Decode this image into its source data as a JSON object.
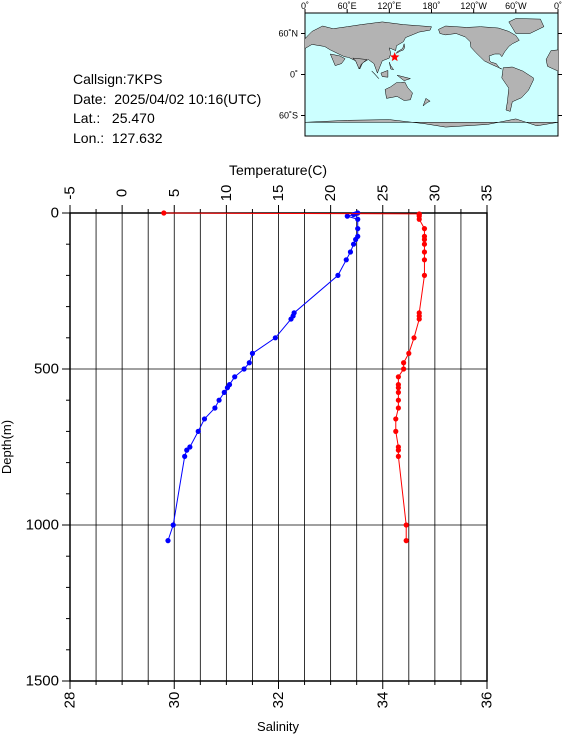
{
  "station": {
    "callsign_line": "Callsign:7KPS",
    "date_line": "Date:  2025/04/02 10:16(UTC)",
    "lat_line": "Lat.:   25.470",
    "lon_line": "Lon.:  127.632"
  },
  "map": {
    "lon_labels": [
      "0˚",
      "60˚E",
      "120˚E",
      "180˚",
      "120˚W",
      "60˚W",
      "0˚"
    ],
    "lat_labels": [
      "60˚N",
      "0˚",
      "60˚S"
    ],
    "ocean_color": "#ccffff",
    "land_color": "#b3b3b3",
    "marker": {
      "icon": "star-icon",
      "lon": 127.632,
      "lat": 25.47,
      "color": "#ff0000"
    }
  },
  "chart_data": {
    "type": "line",
    "top_axis": {
      "label": "Temperature(C)",
      "range": [
        -5,
        35
      ],
      "ticks": [
        "-5",
        "0",
        "5",
        "10",
        "15",
        "20",
        "25",
        "30",
        "35"
      ]
    },
    "bottom_axis": {
      "label": "Salinity",
      "range": [
        28,
        36
      ],
      "ticks": [
        "28",
        "30",
        "32",
        "34",
        "36"
      ]
    },
    "y_axis": {
      "label": "Depth(m)",
      "range": [
        0,
        1500
      ],
      "inverted": true,
      "ticks": [
        "0",
        "500",
        "1000",
        "1500"
      ]
    },
    "grid": true,
    "series": [
      {
        "quantity": "temperature",
        "axis": "top",
        "color": "#0000ff",
        "depth": [
          0,
          3,
          5,
          10,
          20,
          50,
          75,
          85,
          100,
          125,
          150,
          200,
          320,
          330,
          340,
          400,
          450,
          480,
          500,
          525,
          550,
          560,
          575,
          600,
          625,
          660,
          700,
          750,
          760,
          780,
          1000,
          1050
        ],
        "values": [
          22.6,
          22.4,
          22.2,
          21.6,
          22.6,
          22.6,
          22.6,
          22.4,
          22.2,
          21.9,
          21.5,
          20.7,
          16.5,
          16.4,
          16.2,
          14.7,
          12.5,
          12.2,
          11.7,
          10.8,
          10.3,
          10.1,
          9.8,
          9.3,
          8.9,
          7.9,
          7.3,
          6.5,
          6.2,
          6.0,
          4.9,
          4.4
        ]
      },
      {
        "quantity": "salinity",
        "axis": "bottom",
        "color": "#ff0000",
        "depth": [
          0,
          3,
          5,
          10,
          20,
          50,
          75,
          85,
          100,
          125,
          150,
          200,
          320,
          330,
          340,
          400,
          450,
          480,
          500,
          525,
          550,
          560,
          575,
          600,
          625,
          660,
          700,
          750,
          760,
          780,
          1000,
          1050
        ],
        "values": [
          29.8,
          34.7,
          34.7,
          34.7,
          34.7,
          34.8,
          34.8,
          34.8,
          34.8,
          34.8,
          34.8,
          34.8,
          34.7,
          34.7,
          34.7,
          34.6,
          34.5,
          34.4,
          34.4,
          34.3,
          34.3,
          34.3,
          34.3,
          34.3,
          34.3,
          34.25,
          34.25,
          34.3,
          34.3,
          34.3,
          34.45,
          34.45
        ]
      }
    ]
  }
}
